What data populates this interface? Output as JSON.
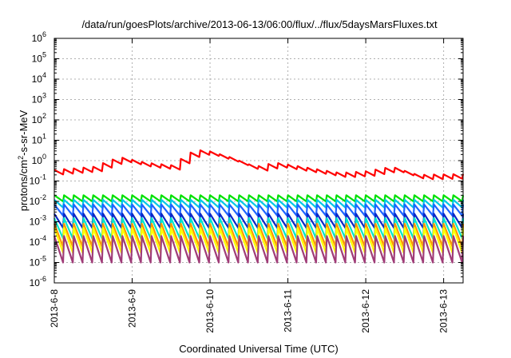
{
  "chart_data": {
    "type": "line",
    "title": "/data/run/goesPlots/archive/2013-06-13/06:00/flux/../flux/5daysMarsFluxes.txt",
    "xlabel": "Coordinated Universal Time (UTC)",
    "ylabel_parts": [
      "protons/cm",
      "2",
      "-s-sr-MeV"
    ],
    "x_ticks": [
      "2013-6-8",
      "2013-6-9",
      "2013-6-10",
      "2013-6-11",
      "2013-6-12",
      "2013-6-13"
    ],
    "xlim": [
      "2013-6-8T00:00",
      "2013-6-13T06:00"
    ],
    "y_scale": "log",
    "ylim": [
      1e-06,
      1000000.0
    ],
    "y_tick_exponents": [
      -6,
      -5,
      -4,
      -3,
      -2,
      -1,
      0,
      1,
      2,
      3,
      4,
      5,
      6
    ],
    "grid": true,
    "cycle_hours": 3,
    "series": [
      {
        "color": "#ff0000",
        "description": "highest-flux channel, sawtooth modulated",
        "envelope": [
          {
            "x": "2013-6-8T00:00",
            "y": 0.35
          },
          {
            "x": "2013-6-8T12:00",
            "y": 0.5
          },
          {
            "x": "2013-6-8T20:00",
            "y": 1.5
          },
          {
            "x": "2013-6-9T04:00",
            "y": 0.8
          },
          {
            "x": "2013-6-9T12:00",
            "y": 0.6
          },
          {
            "x": "2013-6-9T18:00",
            "y": 2.5
          },
          {
            "x": "2013-6-9T22:00",
            "y": 3.5
          },
          {
            "x": "2013-6-10T06:00",
            "y": 1.5
          },
          {
            "x": "2013-6-10T14:00",
            "y": 0.5
          },
          {
            "x": "2013-6-10T20:00",
            "y": 0.8
          },
          {
            "x": "2013-6-11T08:00",
            "y": 0.4
          },
          {
            "x": "2013-6-11T16:00",
            "y": 0.25
          },
          {
            "x": "2013-6-12T00:00",
            "y": 0.3
          },
          {
            "x": "2013-6-12T08:00",
            "y": 0.5
          },
          {
            "x": "2013-6-12T16:00",
            "y": 0.2
          },
          {
            "x": "2013-6-13T06:00",
            "y": 0.22
          }
        ],
        "sawtooth_low_factor": 0.6
      },
      {
        "color": "#00e000",
        "peak": 0.02,
        "trough": 0.01
      },
      {
        "color": "#00c8e6",
        "peak": 0.012,
        "trough": 0.005
      },
      {
        "color": "#1e64ff",
        "peak": 0.007,
        "trough": 0.002
      },
      {
        "color": "#0a28c8",
        "peak": 0.0025,
        "trough": 0.0005
      },
      {
        "color": "#00e6c8",
        "peak": 0.0015,
        "trough": 0.00015
      },
      {
        "color": "#ff9600",
        "peak": 0.0008,
        "trough": 6e-05
      },
      {
        "color": "#ffff00",
        "peak": 0.0005,
        "trough": 3e-05
      },
      {
        "color": "#a03c78",
        "peak": 0.0002,
        "trough": 1e-05
      }
    ]
  }
}
